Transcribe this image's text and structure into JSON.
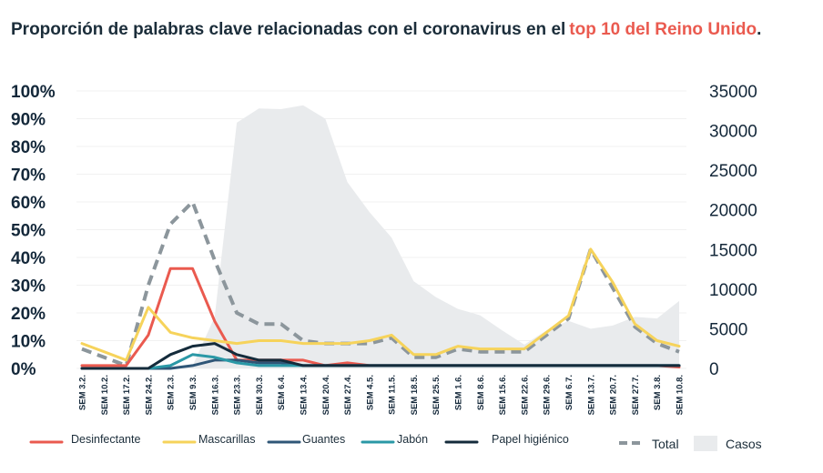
{
  "title": {
    "main": "Proporción de palabras clave relacionadas con el coronavirus en el",
    "highlight": "top 10 del Reino Unido",
    "end": "."
  },
  "colors": {
    "desinfectante": "#ea5a4f",
    "mascarillas": "#f6d35b",
    "guantes": "#2f5677",
    "jabon": "#2a98a6",
    "papel": "#142b3b",
    "total": "#8c969c",
    "casos": "#e9ebed"
  },
  "chart_data": {
    "type": "line",
    "categories": [
      "SEM 3.2.",
      "SEM 10.2.",
      "SEM 17.2.",
      "SEM 24.2.",
      "SEM 2.3.",
      "SEM 9.3.",
      "SEM 16.3.",
      "SEM 23.3.",
      "SEM 30.3.",
      "SEM 6.4.",
      "SEM 13.4.",
      "SEM 20.4.",
      "SEM 27.4.",
      "SEM 4.5.",
      "SEM 11.5.",
      "SEM 18.5.",
      "SEM 25.5.",
      "SEM 1.6.",
      "SEM 8.6.",
      "SEM 15.6.",
      "SEM 22.6.",
      "SEM 29.6.",
      "SEM 6.7.",
      "SEM 13.7.",
      "SEM 20.7.",
      "SEM 27.7.",
      "SEM 3.8.",
      "SEM 10.8."
    ],
    "y_left": {
      "ticks": [
        "0%",
        "10%",
        "20%",
        "30%",
        "40%",
        "50%",
        "60%",
        "70%",
        "80%",
        "90%",
        "100%"
      ],
      "ylim": [
        0,
        100
      ]
    },
    "y_right": {
      "ticks": [
        "0",
        "5000",
        "10000",
        "15000",
        "20000",
        "25000",
        "30000",
        "35000"
      ],
      "ylim": [
        0,
        35000
      ]
    },
    "series": [
      {
        "name": "Desinfectante",
        "key": "desinfectante",
        "axis": "left",
        "values": [
          1,
          1,
          1,
          12,
          36,
          36,
          17,
          3,
          3,
          3,
          3,
          1,
          2,
          1,
          1,
          1,
          1,
          1,
          1,
          1,
          1,
          1,
          1,
          1,
          1,
          1,
          1,
          0.5
        ]
      },
      {
        "name": "Mascarillas",
        "key": "mascarillas",
        "axis": "left",
        "values": [
          9,
          6,
          3,
          22,
          13,
          11,
          10,
          9,
          10,
          10,
          9,
          9,
          9,
          10,
          12,
          5,
          5,
          8,
          7,
          7,
          7,
          13,
          19,
          43,
          31,
          16,
          10,
          8
        ]
      },
      {
        "name": "Guantes",
        "key": "guantes",
        "axis": "left",
        "values": [
          0,
          0,
          0,
          0,
          0,
          1,
          3,
          3,
          2,
          2,
          1,
          1,
          1,
          1,
          1,
          1,
          1,
          1,
          1,
          1,
          1,
          1,
          1,
          1,
          1,
          1,
          1,
          1
        ]
      },
      {
        "name": "Jabón",
        "key": "jabon",
        "axis": "left",
        "values": [
          0,
          0,
          0,
          0,
          1,
          5,
          4,
          2,
          1,
          1,
          1,
          1,
          1,
          1,
          1,
          1,
          1,
          1,
          1,
          1,
          1,
          1,
          1,
          1,
          1,
          1,
          1,
          1
        ]
      },
      {
        "name": "Papel higiénico",
        "key": "papel",
        "axis": "left",
        "values": [
          0,
          0,
          0,
          0,
          5,
          8,
          9,
          5,
          3,
          3,
          1,
          1,
          1,
          1,
          1,
          1,
          1,
          1,
          1,
          1,
          1,
          1,
          1,
          1,
          1,
          1,
          1,
          1
        ]
      },
      {
        "name": "Total",
        "key": "total",
        "axis": "left",
        "style": "dashed",
        "values": [
          7,
          4,
          1,
          30,
          52,
          60,
          39,
          20,
          16,
          16,
          10,
          9,
          9,
          9,
          11,
          4,
          4,
          7,
          6,
          6,
          6,
          12,
          18,
          43,
          29,
          15,
          9,
          6
        ]
      },
      {
        "name": "Casos",
        "key": "casos",
        "axis": "right",
        "style": "area",
        "values": [
          0,
          0,
          0,
          0,
          0,
          300,
          6500,
          31000,
          32800,
          32700,
          33200,
          31500,
          23500,
          19700,
          16500,
          11000,
          9000,
          7500,
          6700,
          4800,
          3000,
          4800,
          6000,
          5000,
          5400,
          6500,
          6300,
          8500
        ]
      }
    ],
    "legend": [
      {
        "label": "Desinfectante",
        "key": "desinfectante"
      },
      {
        "label": "Mascarillas",
        "key": "mascarillas"
      },
      {
        "label": "Guantes",
        "key": "guantes"
      },
      {
        "label": "Jabón",
        "key": "jabon"
      },
      {
        "label": "Papel higiénico",
        "key": "papel"
      },
      {
        "label": "Total",
        "key": "total"
      },
      {
        "label": "Casos",
        "key": "casos"
      }
    ],
    "legend_position": "bottom",
    "grid": true
  }
}
